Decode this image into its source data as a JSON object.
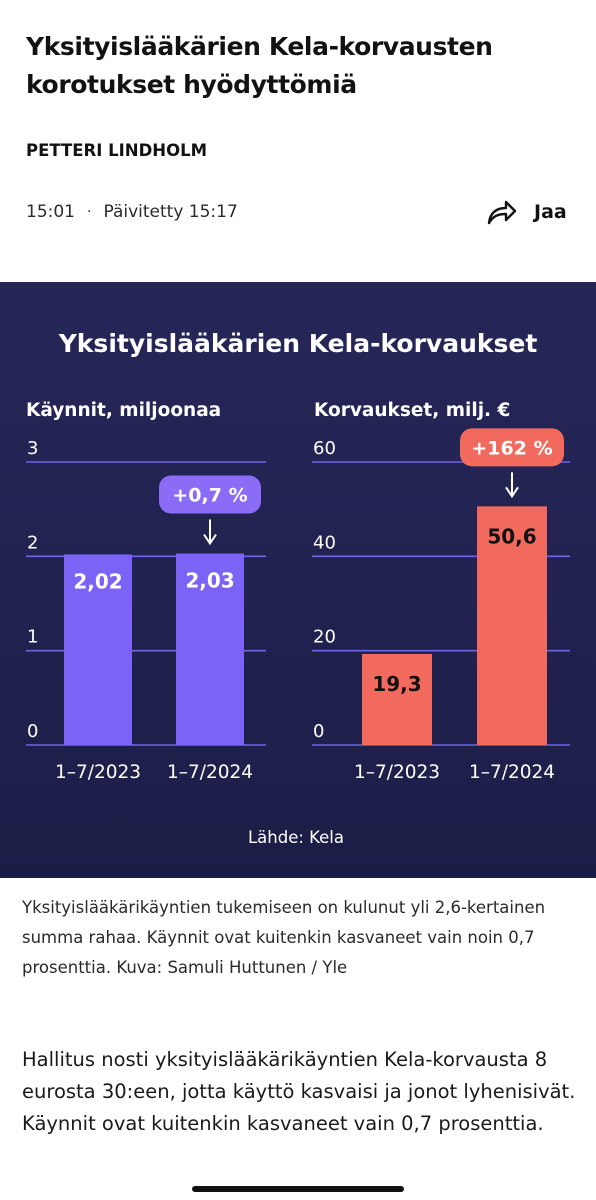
{
  "article": {
    "headline": "Yksityislääkärien Kela-korvausten korotukset hyödyttömiä",
    "author": "PETTERI LINDHOLM",
    "published_time": "15:01",
    "separator": "·",
    "updated": "Päivitetty 15:17",
    "share_label": "Jaa"
  },
  "graphic": {
    "title": "Yksityislääkärien Kela-korvaukset",
    "source": "Lähde: Kela",
    "colors": {
      "background": "#23244f",
      "left_bars": "#7a63f5",
      "right_bars": "#f2695d",
      "badge_left": "#8b6cf7",
      "badge_right": "#f2695d",
      "text": "#ffffff"
    }
  },
  "chart_data": [
    {
      "type": "bar",
      "title": "Käynnit, miljoonaa",
      "categories": [
        "1–7/2023",
        "1–7/2024"
      ],
      "values": [
        2.02,
        2.03
      ],
      "value_labels": [
        "2,02",
        "2,03"
      ],
      "ylim": [
        0,
        3
      ],
      "yticks": [
        0,
        1,
        2,
        3
      ],
      "ytick_labels": [
        "0",
        "1",
        "2",
        "3"
      ],
      "annotation": "+0,7 %",
      "grid": true
    },
    {
      "type": "bar",
      "title": "Korvaukset, milj. €",
      "categories": [
        "1–7/2023",
        "1–7/2024"
      ],
      "values": [
        19.3,
        50.6
      ],
      "value_labels": [
        "19,3",
        "50,6"
      ],
      "ylim": [
        0,
        60
      ],
      "yticks": [
        0,
        20,
        40,
        60
      ],
      "ytick_labels": [
        "0",
        "20",
        "40",
        "60"
      ],
      "annotation": "+162 %",
      "grid": true
    }
  ],
  "caption": "Yksityislääkärikäyntien tukemiseen on kulunut yli 2,6-kertainen summa rahaa. Käynnit ovat kuitenkin kasvaneet vain noin 0,7 prosenttia. Kuva: Samuli Huttunen / Yle",
  "body": "Hallitus nosti yksityislääkärikäyntien Kela-korvausta 8 eurosta 30:een, jotta käyttö kasvaisi ja jonot lyhenisivät. Käynnit ovat kuitenkin kasvaneet vain 0,7 prosenttia."
}
